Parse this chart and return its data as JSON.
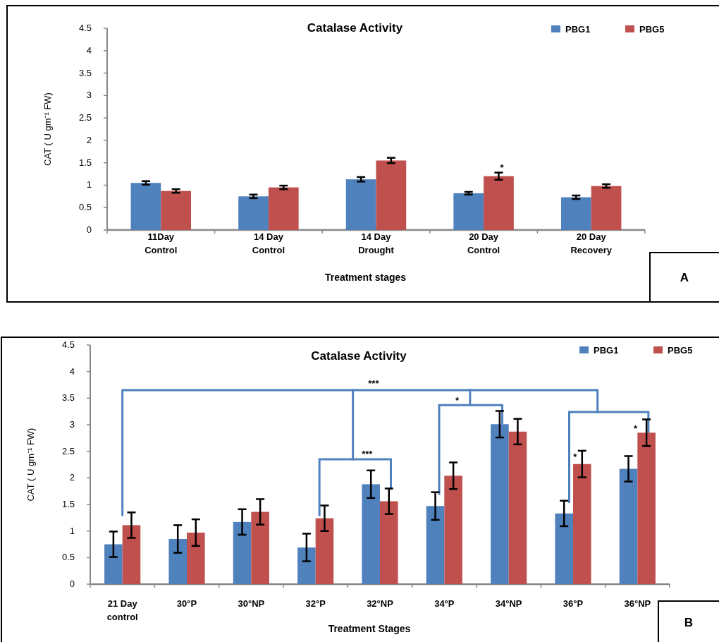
{
  "chart_data": [
    {
      "type": "bar",
      "title": "Catalase Activity",
      "xlabel": "Treatment stages",
      "ylabel": "CAT ( U gm⁻¹ FW)",
      "categories": [
        "11Day Control",
        "14 Day Control",
        "14 Day Drought",
        "20 Day Control",
        "20 Day Recovery"
      ],
      "series": [
        {
          "name": "PBG1",
          "color": "#4f81bd",
          "values": [
            1.05,
            0.75,
            1.13,
            0.82,
            0.73
          ],
          "errors": [
            0.04,
            0.04,
            0.05,
            0.03,
            0.04
          ]
        },
        {
          "name": "PBG5",
          "color": "#c0504d",
          "values": [
            0.87,
            0.95,
            1.55,
            1.2,
            0.98
          ],
          "errors": [
            0.04,
            0.04,
            0.06,
            0.08,
            0.04
          ]
        }
      ],
      "ylim": [
        0,
        4.5
      ],
      "yticks": [
        0,
        0.5,
        1,
        1.5,
        2,
        2.5,
        3,
        3.5,
        4,
        4.5
      ],
      "legend": "top right",
      "annotations": [
        "*",
        "A"
      ]
    },
    {
      "type": "bar",
      "title": "Catalase Activity",
      "xlabel": "Treatment Stages",
      "ylabel": "CAT ( U gm⁻¹ FW)",
      "categories": [
        "21 Day control",
        "30°P",
        "30°NP",
        "32°P",
        "32°NP",
        "34°P",
        "34°NP",
        "36°P",
        "36°NP"
      ],
      "series": [
        {
          "name": "PBG1",
          "color": "#4f81bd",
          "values": [
            0.75,
            0.85,
            1.17,
            0.69,
            1.88,
            1.47,
            3.01,
            1.33,
            2.17
          ],
          "errors": [
            0.24,
            0.26,
            0.24,
            0.26,
            0.26,
            0.26,
            0.25,
            0.24,
            0.24
          ]
        },
        {
          "name": "PBG5",
          "color": "#c0504d",
          "values": [
            1.11,
            0.97,
            1.36,
            1.24,
            1.56,
            2.04,
            2.87,
            2.26,
            2.85
          ],
          "errors": [
            0.24,
            0.25,
            0.24,
            0.24,
            0.24,
            0.25,
            0.24,
            0.25,
            0.25
          ]
        }
      ],
      "ylim": [
        0,
        4.5
      ],
      "yticks": [
        0,
        0.5,
        1,
        1.5,
        2,
        2.5,
        3,
        3.5,
        4,
        4.5
      ],
      "legend": "top right",
      "annotations": [
        "***",
        "***",
        "*",
        "*",
        "*",
        "B"
      ]
    }
  ]
}
